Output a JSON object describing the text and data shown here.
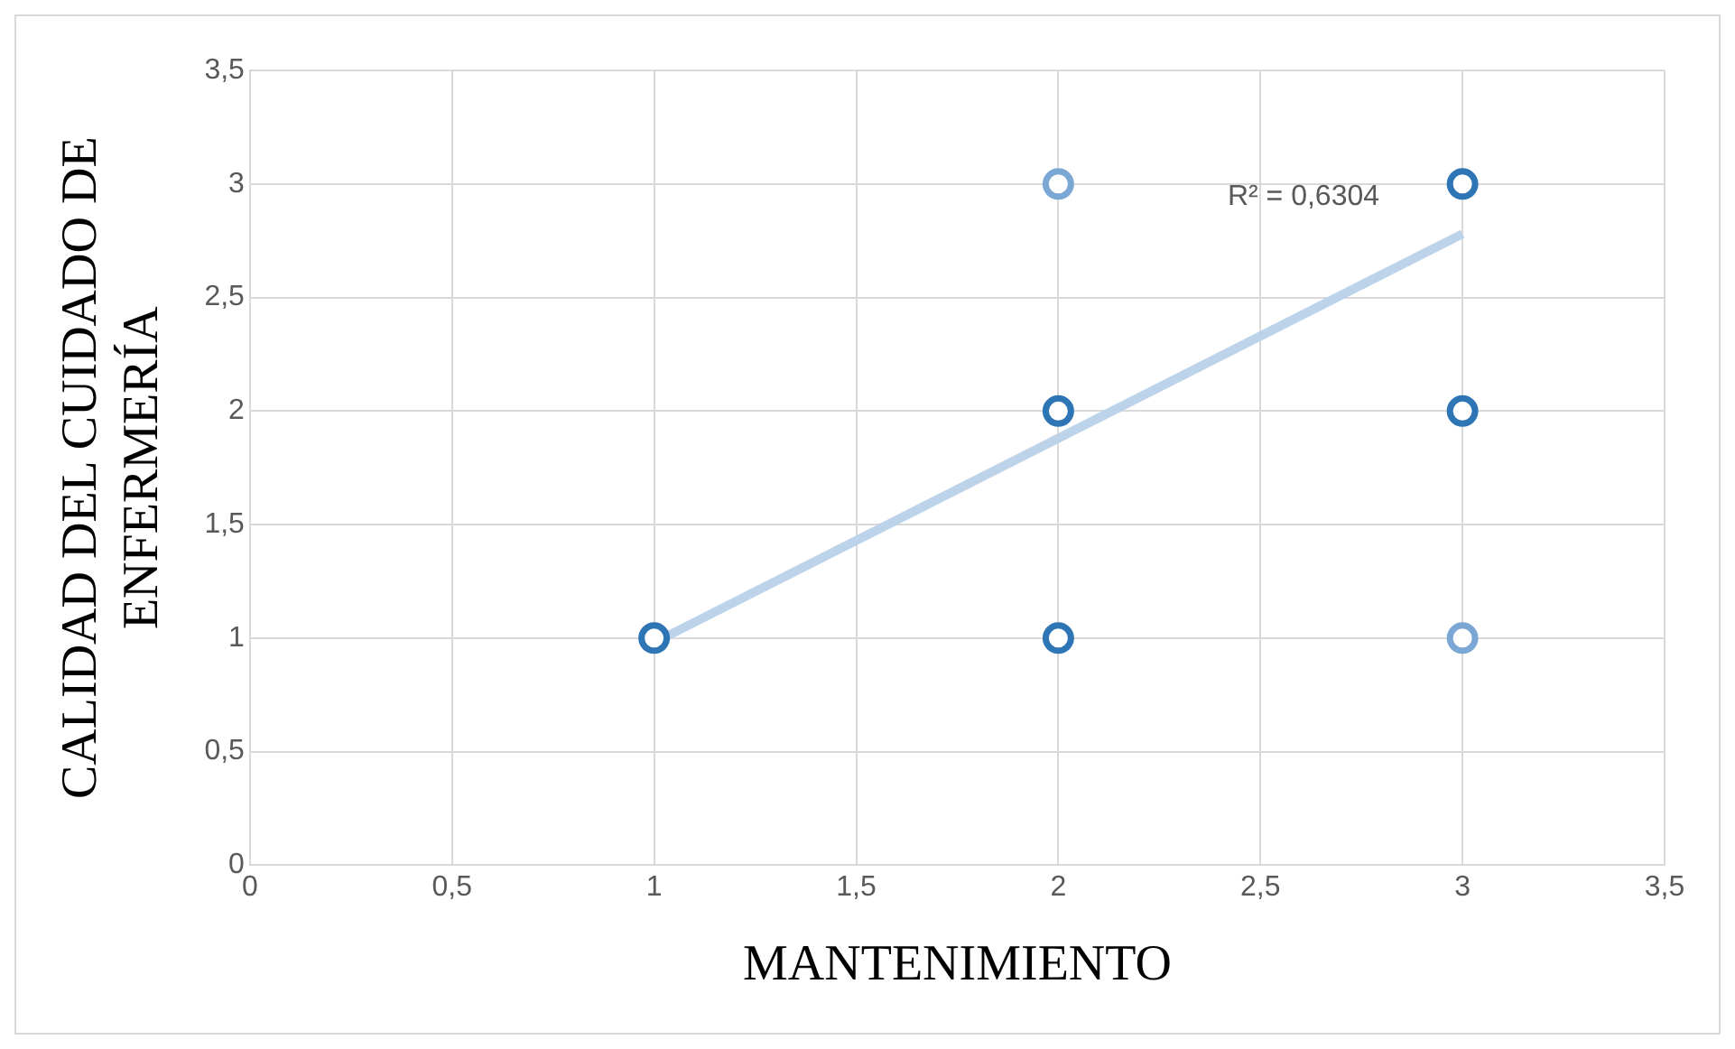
{
  "chart_data": {
    "type": "scatter",
    "xlabel": "MANTENIMIENTO",
    "ylabel": "CALIDAD DEL CUIDADO DE ENFERMERÍA",
    "xlim": [
      0,
      3.5
    ],
    "ylim": [
      0,
      3.5
    ],
    "xticks": [
      0,
      {
        "value": 0.5,
        "label": "0,5"
      },
      1,
      {
        "value": 1.5,
        "label": "1,5"
      },
      2,
      {
        "value": 2.5,
        "label": "2,5"
      },
      3,
      {
        "value": 3.5,
        "label": "3,5"
      }
    ],
    "yticks": [
      0,
      {
        "value": 0.5,
        "label": "0,5"
      },
      1,
      {
        "value": 1.5,
        "label": "1,5"
      },
      2,
      {
        "value": 2.5,
        "label": "2,5"
      },
      3,
      {
        "value": 3.5,
        "label": "3,5"
      }
    ],
    "grid": true,
    "legend": false,
    "series": [
      {
        "marker": "circle",
        "color": "#2e75b6",
        "x": [
          1,
          2,
          2,
          2,
          3,
          3,
          3
        ],
        "values": [
          1,
          1,
          2,
          3,
          1,
          2,
          3
        ],
        "colors": [
          "#2e75b6",
          "#2e75b6",
          "#2e75b6",
          "#7aa7d4",
          "#7aa7d4",
          "#2e75b6",
          "#2e75b6"
        ]
      },
      {
        "type": "line",
        "color": "#bdd3ea",
        "x": [
          1,
          3
        ],
        "values": [
          0.98,
          2.78
        ]
      }
    ],
    "annotations": [
      "R² = 0,6304"
    ]
  }
}
